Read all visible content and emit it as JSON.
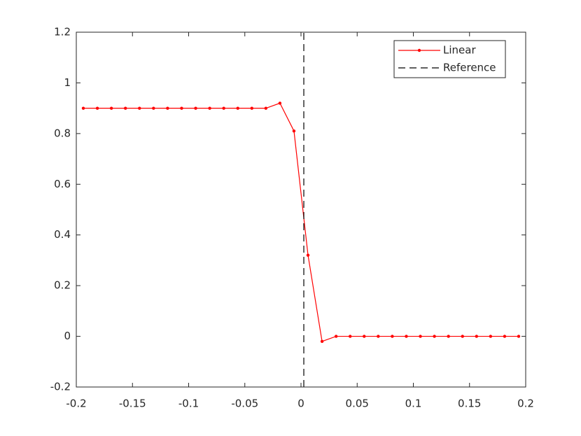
{
  "chart_data": {
    "type": "line",
    "series": [
      {
        "name": "Linear",
        "color": "#ff0000",
        "line_style": "solid",
        "marker": "dot",
        "x": [
          -0.19375,
          -0.18125,
          -0.16875,
          -0.15625,
          -0.14375,
          -0.13125,
          -0.11875,
          -0.10625,
          -0.09375,
          -0.08125,
          -0.06875,
          -0.05625,
          -0.04375,
          -0.03125,
          -0.01875,
          -0.00625,
          0.00625,
          0.01875,
          0.03125,
          0.04375,
          0.05625,
          0.06875,
          0.08125,
          0.09375,
          0.10625,
          0.11875,
          0.13125,
          0.14375,
          0.15625,
          0.16875,
          0.18125,
          0.19375
        ],
        "values": [
          0.9,
          0.9,
          0.9,
          0.9,
          0.9,
          0.9,
          0.9,
          0.9,
          0.9,
          0.9,
          0.9,
          0.9,
          0.9,
          0.9,
          0.92,
          0.81,
          0.32,
          -0.02,
          0,
          0,
          0,
          0,
          0,
          0,
          0,
          0,
          0,
          0,
          0,
          0,
          0,
          0
        ]
      },
      {
        "name": "Reference",
        "color": "#000000",
        "line_style": "dashed",
        "marker": "none",
        "x": [
          0.0025,
          0.0025
        ],
        "values": [
          -0.2,
          1.2
        ]
      }
    ],
    "xlim": [
      -0.2,
      0.2
    ],
    "xticks": [
      -0.2,
      -0.15,
      -0.1,
      -0.05,
      0,
      0.05,
      0.1,
      0.15,
      0.2
    ],
    "ylim": [
      -0.2,
      1.2
    ],
    "yticks": [
      -0.2,
      0,
      0.2,
      0.4,
      0.6,
      0.8,
      1,
      1.2
    ],
    "grid": false,
    "legend": "northeast"
  }
}
